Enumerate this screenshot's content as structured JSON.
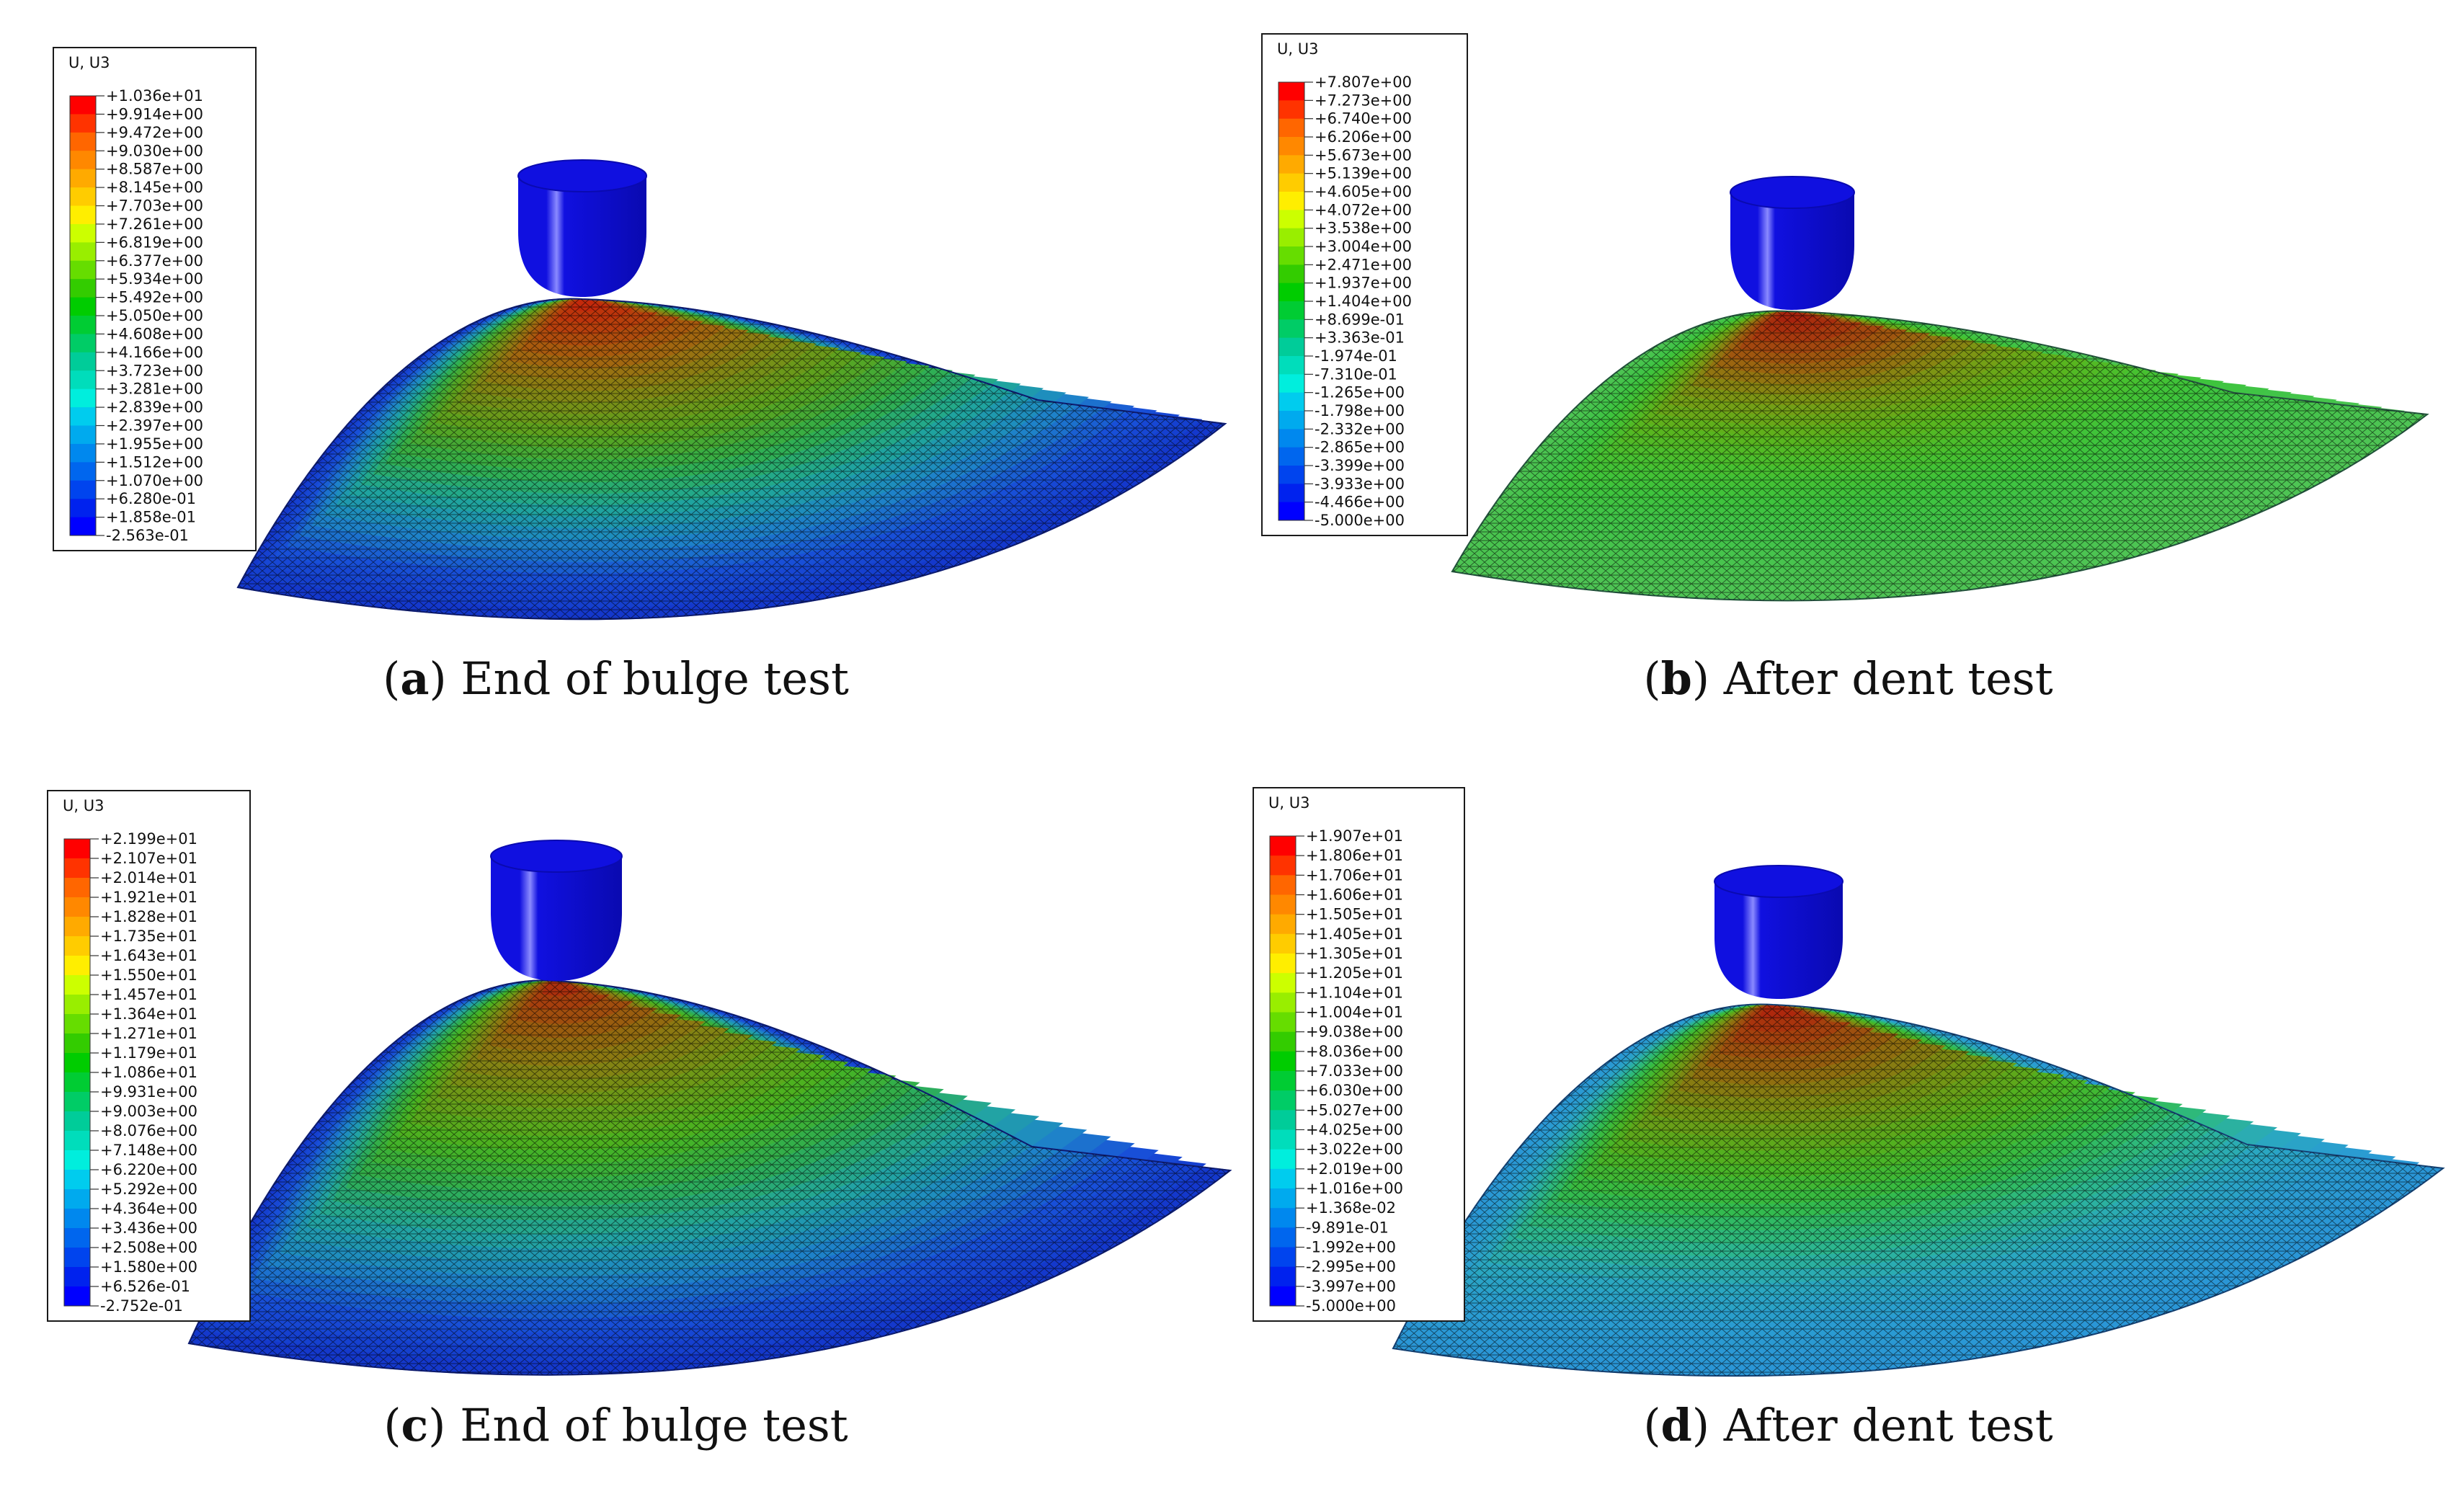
{
  "panels": [
    {
      "id": "a",
      "legend_title": "U, U3",
      "caption_letter": "a",
      "caption_text": "End of bulge test",
      "labels": [
        "+1.036e+01",
        "+9.914e+00",
        "+9.472e+00",
        "+9.030e+00",
        "+8.587e+00",
        "+8.145e+00",
        "+7.703e+00",
        "+7.261e+00",
        "+6.819e+00",
        "+6.377e+00",
        "+5.934e+00",
        "+5.492e+00",
        "+5.050e+00",
        "+4.608e+00",
        "+4.166e+00",
        "+3.723e+00",
        "+3.281e+00",
        "+2.839e+00",
        "+2.397e+00",
        "+1.955e+00",
        "+1.512e+00",
        "+1.070e+00",
        "+6.280e-01",
        "+1.858e-01",
        "-2.563e-01"
      ],
      "surface_colors": [
        "#c81e0a",
        "#b7400c",
        "#a06a10",
        "#7e8c16",
        "#5aa41e",
        "#32b04a",
        "#1fa79a",
        "#1e86c8",
        "#1850d8",
        "#1438cc"
      ],
      "edge_color": "#1438cc"
    },
    {
      "id": "b",
      "legend_title": "U, U3",
      "caption_letter": "b",
      "caption_text": "After dent test",
      "labels": [
        "+7.807e+00",
        "+7.273e+00",
        "+6.740e+00",
        "+6.206e+00",
        "+5.673e+00",
        "+5.139e+00",
        "+4.605e+00",
        "+4.072e+00",
        "+3.538e+00",
        "+3.004e+00",
        "+2.471e+00",
        "+1.937e+00",
        "+1.404e+00",
        "+8.699e-01",
        "+3.363e-01",
        "-1.974e-01",
        "-7.310e-01",
        "-1.265e+00",
        "-1.798e+00",
        "-2.332e+00",
        "-2.865e+00",
        "-3.399e+00",
        "-3.933e+00",
        "-4.466e+00",
        "-5.000e+00"
      ],
      "surface_colors": [
        "#a8180c",
        "#a83a0e",
        "#9a6810",
        "#7a9a14",
        "#5cb41c",
        "#48c02e",
        "#3ec43c",
        "#40c448",
        "#48c44e",
        "#4ec454"
      ],
      "edge_color": "#4ec454"
    },
    {
      "id": "c",
      "legend_title": "U, U3",
      "caption_letter": "c",
      "caption_text": "End of bulge test",
      "labels": [
        "+2.199e+01",
        "+2.107e+01",
        "+2.014e+01",
        "+1.921e+01",
        "+1.828e+01",
        "+1.735e+01",
        "+1.643e+01",
        "+1.550e+01",
        "+1.457e+01",
        "+1.364e+01",
        "+1.271e+01",
        "+1.179e+01",
        "+1.086e+01",
        "+9.931e+00",
        "+9.003e+00",
        "+8.076e+00",
        "+7.148e+00",
        "+6.220e+00",
        "+5.292e+00",
        "+4.364e+00",
        "+3.436e+00",
        "+2.508e+00",
        "+1.580e+00",
        "+6.526e-01",
        "-2.752e-01"
      ],
      "surface_colors": [
        "#b2200c",
        "#a0500e",
        "#8a7c12",
        "#6c9c18",
        "#48b420",
        "#2eae52",
        "#22a6a0",
        "#1e86c8",
        "#1850d8",
        "#1438cc"
      ],
      "edge_color": "#1438cc"
    },
    {
      "id": "d",
      "legend_title": "U, U3",
      "caption_letter": "d",
      "caption_text": "After dent test",
      "labels": [
        "+1.907e+01",
        "+1.806e+01",
        "+1.706e+01",
        "+1.606e+01",
        "+1.505e+01",
        "+1.405e+01",
        "+1.305e+01",
        "+1.205e+01",
        "+1.104e+01",
        "+1.004e+01",
        "+9.038e+00",
        "+8.036e+00",
        "+7.033e+00",
        "+6.030e+00",
        "+5.027e+00",
        "+4.025e+00",
        "+3.022e+00",
        "+2.019e+00",
        "+1.016e+00",
        "+1.368e-02",
        "-9.891e-01",
        "-1.992e+00",
        "-2.995e+00",
        "-3.997e+00",
        "-5.000e+00"
      ],
      "surface_colors": [
        "#b21c0c",
        "#a4420e",
        "#8e7210",
        "#709a16",
        "#4eb420",
        "#34bc46",
        "#2cb888",
        "#2aa8c0",
        "#2a9cd2",
        "#2a96d6"
      ],
      "edge_color": "#2a96d6"
    }
  ],
  "legend_band_colors": [
    "#ff0000",
    "#ff3300",
    "#ff6600",
    "#ff8800",
    "#ffaa00",
    "#ffcc00",
    "#ffee00",
    "#ccff00",
    "#99ee00",
    "#66dd00",
    "#33cc00",
    "#00cc00",
    "#00cc33",
    "#00cc66",
    "#00cc99",
    "#00ddbb",
    "#00eedd",
    "#00ccee",
    "#00aaee",
    "#0088ee",
    "#0066ee",
    "#0044ee",
    "#0022ee",
    "#0000ff"
  ],
  "indenter_colors": {
    "body": "#1010e0",
    "shade": "#0a0ab0",
    "highlight": "#8a8aff"
  }
}
